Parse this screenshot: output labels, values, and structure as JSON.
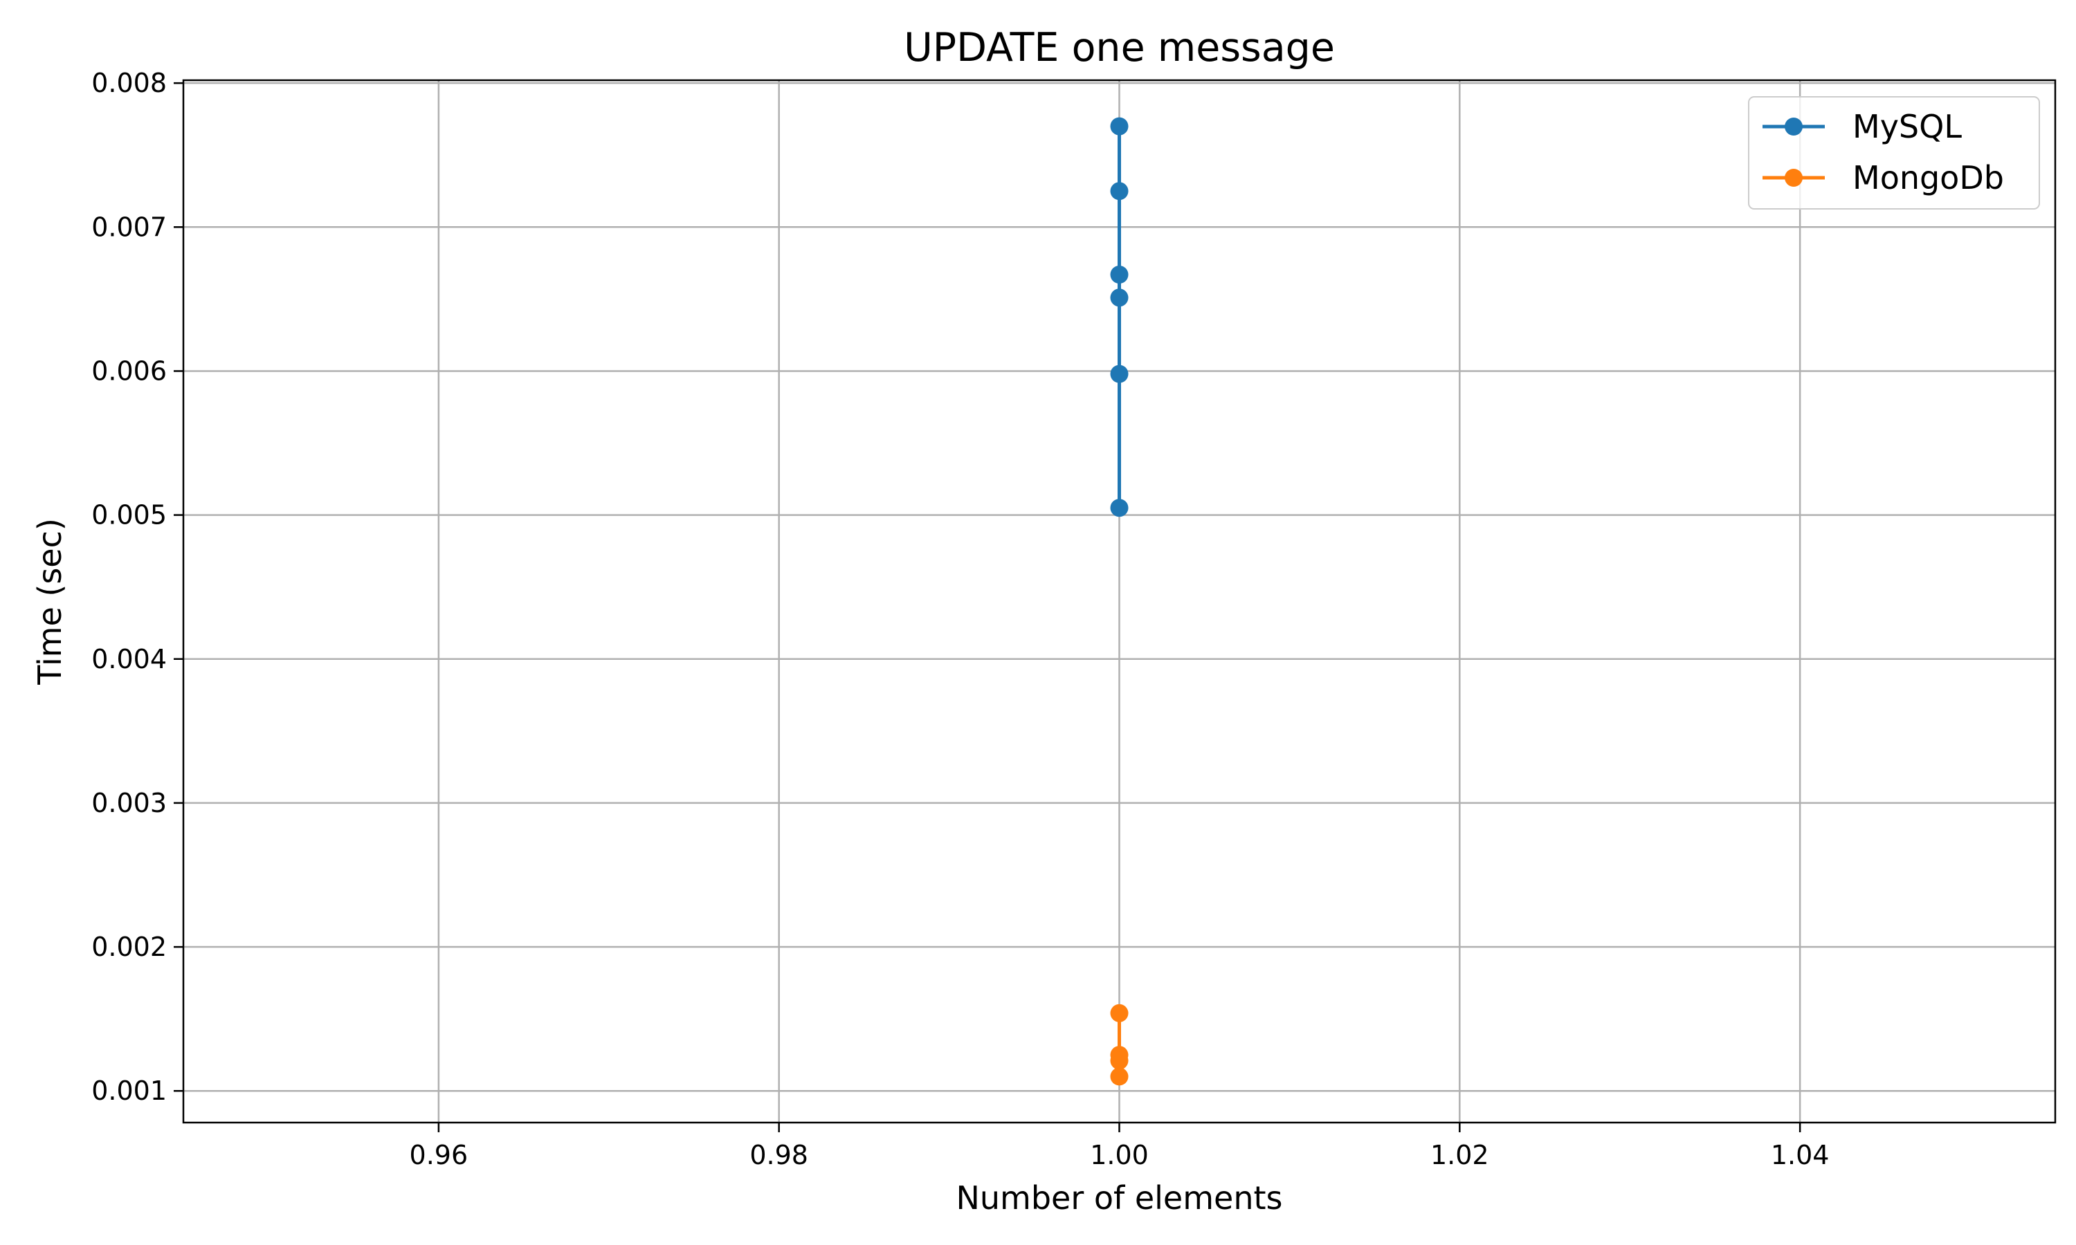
{
  "chart_data": {
    "type": "line",
    "title": "UPDATE one message",
    "xlabel": "Number of elements",
    "ylabel": "Time (sec)",
    "xlim": [
      0.945,
      1.055
    ],
    "ylim": [
      0.00078,
      0.00802
    ],
    "xticks": [
      0.96,
      0.98,
      1.0,
      1.02,
      1.04
    ],
    "xtick_labels": [
      "0.96",
      "0.98",
      "1.00",
      "1.02",
      "1.04"
    ],
    "yticks": [
      0.001,
      0.002,
      0.003,
      0.004,
      0.005,
      0.006,
      0.007,
      0.008
    ],
    "ytick_labels": [
      "0.001",
      "0.002",
      "0.003",
      "0.004",
      "0.005",
      "0.006",
      "0.007",
      "0.008"
    ],
    "grid": true,
    "legend_position": "top-right",
    "series": [
      {
        "name": "MySQL",
        "color": "#1f77b4",
        "x": [
          1.0,
          1.0,
          1.0,
          1.0,
          1.0,
          1.0
        ],
        "y": [
          0.0077,
          0.00725,
          0.00667,
          0.00651,
          0.00598,
          0.00505
        ]
      },
      {
        "name": "MongoDb",
        "color": "#ff7f0e",
        "x": [
          1.0,
          1.0,
          1.0,
          1.0
        ],
        "y": [
          0.00154,
          0.00125,
          0.00121,
          0.0011
        ]
      }
    ]
  }
}
